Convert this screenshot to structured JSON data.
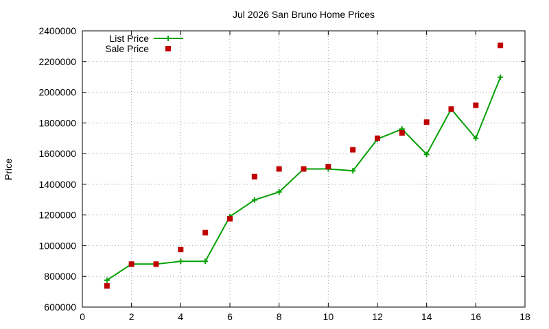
{
  "chart_data": {
    "type": "line",
    "title": "Jul 2026 San Bruno Home Prices",
    "xlabel": "",
    "ylabel": "Price",
    "xlim": [
      0,
      18
    ],
    "ylim": [
      600000,
      2400000
    ],
    "xticks": [
      0,
      2,
      4,
      6,
      8,
      10,
      12,
      14,
      16,
      18
    ],
    "yticks": [
      600000,
      800000,
      1000000,
      1200000,
      1400000,
      1600000,
      1800000,
      2000000,
      2200000,
      2400000
    ],
    "grid": true,
    "legend_position": "top-left",
    "series": [
      {
        "name": "List Price",
        "style": "line-with-plus-markers",
        "color": "#00a000",
        "x": [
          1,
          2,
          3,
          4,
          5,
          6,
          7,
          8,
          9,
          10,
          11,
          12,
          13,
          14,
          15,
          16,
          17
        ],
        "y": [
          775000,
          880000,
          880000,
          898000,
          898000,
          1190000,
          1298000,
          1350000,
          1500000,
          1500000,
          1488000,
          1695000,
          1760000,
          1595000,
          1890000,
          1700000,
          2098000
        ]
      },
      {
        "name": "Sale Price",
        "style": "square-markers",
        "color": "#c00000",
        "x": [
          1,
          2,
          3,
          4,
          5,
          6,
          7,
          8,
          9,
          10,
          11,
          12,
          13,
          14,
          15,
          16,
          17
        ],
        "y": [
          738000,
          880000,
          880000,
          975000,
          1085000,
          1175000,
          1450000,
          1500000,
          1500000,
          1515000,
          1625000,
          1700000,
          1735000,
          1805000,
          1890000,
          1915000,
          2305000
        ]
      }
    ]
  }
}
